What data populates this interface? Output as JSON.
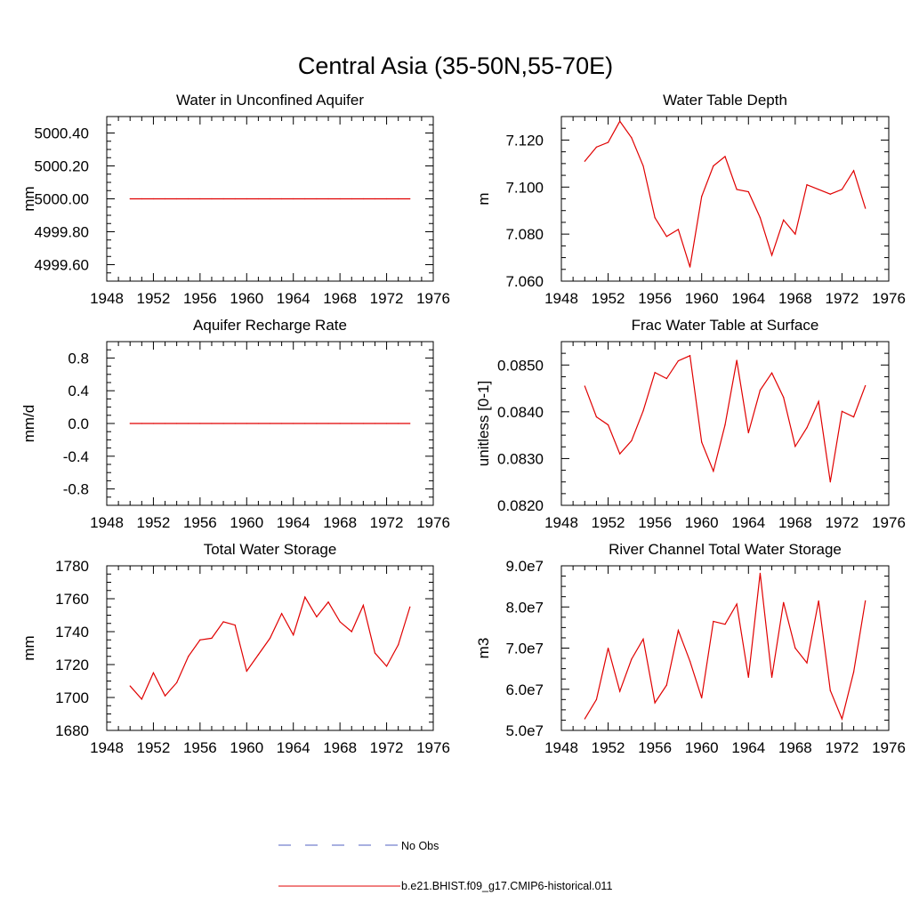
{
  "figure": {
    "title": "Central Asia (35-50N,55-70E)"
  },
  "legend": {
    "items": [
      {
        "label": "No Obs",
        "color": "#5060c0",
        "style": "dashed"
      },
      {
        "label": "b.e21.BHIST.f09_g17.CMIP6-historical.011",
        "color": "#e00000",
        "style": "solid"
      }
    ]
  },
  "chart_data": [
    {
      "type": "line",
      "title": "Water in Unconfined Aquifer",
      "ylabel": "mm",
      "xlim": [
        1948,
        1976
      ],
      "xticks": [
        "1948",
        "1952",
        "1956",
        "1960",
        "1964",
        "1968",
        "1972",
        "1976"
      ],
      "ylim": [
        4999.5,
        5000.5
      ],
      "yticks": [
        "5000.40",
        "5000.20",
        "5000.00",
        "4999.80",
        "4999.60"
      ],
      "ytick_values": [
        5000.4,
        5000.2,
        5000.0,
        4999.8,
        4999.6
      ],
      "series": [
        {
          "name": "b.e21.BHIST.f09_g17.CMIP6-historical.011",
          "color": "#e00000",
          "x": [
            1950,
            1951,
            1952,
            1953,
            1954,
            1955,
            1956,
            1957,
            1958,
            1959,
            1960,
            1961,
            1962,
            1963,
            1964,
            1965,
            1966,
            1967,
            1968,
            1969,
            1970,
            1971,
            1972,
            1973,
            1974
          ],
          "y": [
            5000,
            5000,
            5000,
            5000,
            5000,
            5000,
            5000,
            5000,
            5000,
            5000,
            5000,
            5000,
            5000,
            5000,
            5000,
            5000,
            5000,
            5000,
            5000,
            5000,
            5000,
            5000,
            5000,
            5000,
            5000
          ]
        }
      ]
    },
    {
      "type": "line",
      "title": "Water Table Depth",
      "ylabel": "m",
      "xlim": [
        1948,
        1976
      ],
      "xticks": [
        "1948",
        "1952",
        "1956",
        "1960",
        "1964",
        "1968",
        "1972",
        "1976"
      ],
      "ylim": [
        7.06,
        7.13
      ],
      "yticks": [
        "7.120",
        "7.100",
        "7.080",
        "7.060"
      ],
      "ytick_values": [
        7.12,
        7.1,
        7.08,
        7.06
      ],
      "series": [
        {
          "name": "b.e21.BHIST.f09_g17.CMIP6-historical.011",
          "color": "#e00000",
          "x": [
            1950,
            1951,
            1952,
            1953,
            1954,
            1955,
            1956,
            1957,
            1958,
            1959,
            1960,
            1961,
            1962,
            1963,
            1964,
            1965,
            1966,
            1967,
            1968,
            1969,
            1970,
            1971,
            1972,
            1973,
            1974
          ],
          "y": [
            7.111,
            7.117,
            7.119,
            7.128,
            7.121,
            7.109,
            7.087,
            7.079,
            7.082,
            7.066,
            7.096,
            7.109,
            7.113,
            7.099,
            7.098,
            7.087,
            7.071,
            7.086,
            7.08,
            7.101,
            7.099,
            7.097,
            7.099,
            7.107,
            7.091
          ]
        }
      ]
    },
    {
      "type": "line",
      "title": "Aquifer Recharge Rate",
      "ylabel": "mm/d",
      "xlim": [
        1948,
        1976
      ],
      "xticks": [
        "1948",
        "1952",
        "1956",
        "1960",
        "1964",
        "1968",
        "1972",
        "1976"
      ],
      "ylim": [
        -1.0,
        1.0
      ],
      "yticks": [
        "0.8",
        "0.4",
        "0.0",
        "-0.4",
        "-0.8"
      ],
      "ytick_values": [
        0.8,
        0.4,
        0.0,
        -0.4,
        -0.8
      ],
      "series": [
        {
          "name": "b.e21.BHIST.f09_g17.CMIP6-historical.011",
          "color": "#e00000",
          "x": [
            1950,
            1951,
            1952,
            1953,
            1954,
            1955,
            1956,
            1957,
            1958,
            1959,
            1960,
            1961,
            1962,
            1963,
            1964,
            1965,
            1966,
            1967,
            1968,
            1969,
            1970,
            1971,
            1972,
            1973,
            1974
          ],
          "y": [
            0,
            0,
            0,
            0,
            0,
            0,
            0,
            0,
            0,
            0,
            0,
            0,
            0,
            0,
            0,
            0,
            0,
            0,
            0,
            0,
            0,
            0,
            0,
            0,
            0
          ]
        }
      ]
    },
    {
      "type": "line",
      "title": "Frac Water Table at Surface",
      "ylabel": "unitless [0-1]",
      "xlim": [
        1948,
        1976
      ],
      "xticks": [
        "1948",
        "1952",
        "1956",
        "1960",
        "1964",
        "1968",
        "1972",
        "1976"
      ],
      "ylim": [
        0.082,
        0.0855
      ],
      "yticks": [
        "0.0850",
        "0.0840",
        "0.0830",
        "0.0820"
      ],
      "ytick_values": [
        0.085,
        0.084,
        0.083,
        0.082
      ],
      "series": [
        {
          "name": "b.e21.BHIST.f09_g17.CMIP6-historical.011",
          "color": "#e00000",
          "x": [
            1950,
            1951,
            1952,
            1953,
            1954,
            1955,
            1956,
            1957,
            1958,
            1959,
            1960,
            1961,
            1962,
            1963,
            1964,
            1965,
            1966,
            1967,
            1968,
            1969,
            1970,
            1971,
            1972,
            1973,
            1974
          ],
          "y": [
            0.08455,
            0.08389,
            0.08372,
            0.0831,
            0.08338,
            0.08402,
            0.08484,
            0.08471,
            0.08509,
            0.0852,
            0.08335,
            0.08273,
            0.08372,
            0.0851,
            0.08355,
            0.08446,
            0.08483,
            0.08431,
            0.08326,
            0.08366,
            0.08422,
            0.0825,
            0.08401,
            0.08389,
            0.08456
          ]
        }
      ]
    },
    {
      "type": "line",
      "title": "Total Water Storage",
      "ylabel": "mm",
      "xlim": [
        1948,
        1976
      ],
      "xticks": [
        "1948",
        "1952",
        "1956",
        "1960",
        "1964",
        "1968",
        "1972",
        "1976"
      ],
      "ylim": [
        1680,
        1780
      ],
      "yticks": [
        "1780",
        "1760",
        "1740",
        "1720",
        "1700",
        "1680"
      ],
      "ytick_values": [
        1780,
        1760,
        1740,
        1720,
        1700,
        1680
      ],
      "series": [
        {
          "name": "b.e21.BHIST.f09_g17.CMIP6-historical.011",
          "color": "#e00000",
          "x": [
            1950,
            1951,
            1952,
            1953,
            1954,
            1955,
            1956,
            1957,
            1958,
            1959,
            1960,
            1961,
            1962,
            1963,
            1964,
            1965,
            1966,
            1967,
            1968,
            1969,
            1970,
            1971,
            1972,
            1973,
            1974
          ],
          "y": [
            1707,
            1699,
            1715,
            1701,
            1709,
            1725,
            1735,
            1736,
            1746,
            1744,
            1716,
            1726,
            1736,
            1751,
            1738,
            1761,
            1749,
            1758,
            1746,
            1740,
            1756,
            1727,
            1719,
            1732,
            1755
          ]
        }
      ]
    },
    {
      "type": "line",
      "title": "River Channel Total Water Storage",
      "ylabel": "m3",
      "xlim": [
        1948,
        1976
      ],
      "xticks": [
        "1948",
        "1952",
        "1956",
        "1960",
        "1964",
        "1968",
        "1972",
        "1976"
      ],
      "ylim": [
        50000000,
        90000000
      ],
      "yticks": [
        "9.0e7",
        "8.0e7",
        "7.0e7",
        "6.0e7",
        "5.0e7"
      ],
      "ytick_values": [
        90000000,
        80000000,
        70000000,
        60000000,
        50000000
      ],
      "series": [
        {
          "name": "b.e21.BHIST.f09_g17.CMIP6-historical.011",
          "color": "#e00000",
          "x": [
            1950,
            1951,
            1952,
            1953,
            1954,
            1955,
            1956,
            1957,
            1958,
            1959,
            1960,
            1961,
            1962,
            1963,
            1964,
            1965,
            1966,
            1967,
            1968,
            1969,
            1970,
            1971,
            1972,
            1973,
            1974
          ],
          "y": [
            52800000,
            57500000,
            70000000,
            59500000,
            67300000,
            72200000,
            56700000,
            61000000,
            74300000,
            66800000,
            57900000,
            76500000,
            75800000,
            80700000,
            62900000,
            88200000,
            62900000,
            81100000,
            70000000,
            66400000,
            81500000,
            59700000,
            52800000,
            64200000,
            81500000
          ]
        }
      ]
    }
  ]
}
